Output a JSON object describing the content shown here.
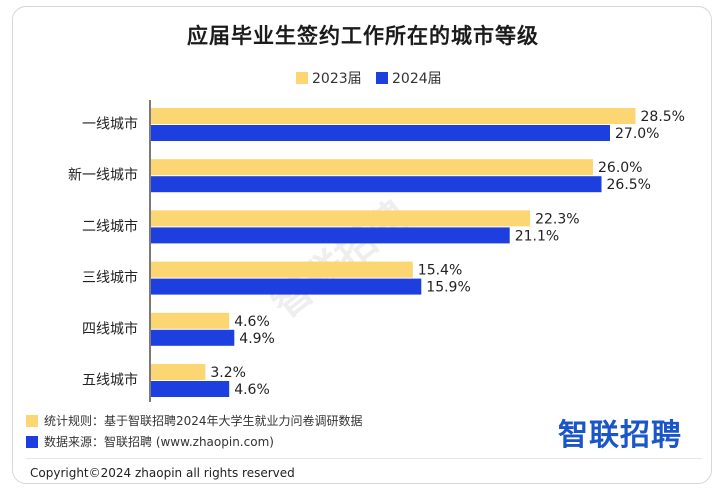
{
  "title": "应届毕业生签约工作所在的城市等级",
  "colors": {
    "y2023": "#fbd672",
    "y2024": "#1e3fe0"
  },
  "chart_data": {
    "type": "bar",
    "orientation": "horizontal",
    "categories": [
      "一线城市",
      "新一线城市",
      "二线城市",
      "三线城市",
      "四线城市",
      "五线城市"
    ],
    "series": [
      {
        "name": "2023届",
        "values": [
          28.5,
          26.0,
          22.3,
          15.4,
          4.6,
          3.2
        ],
        "labels": [
          "28.5%",
          "26.0%",
          "22.3%",
          "15.4%",
          "4.6%",
          "3.2%"
        ]
      },
      {
        "name": "2024届",
        "values": [
          27.0,
          26.5,
          21.1,
          15.9,
          4.9,
          4.6
        ],
        "labels": [
          "27.0%",
          "26.5%",
          "21.1%",
          "15.9%",
          "4.9%",
          "4.6%"
        ]
      }
    ],
    "xlim": [
      0,
      30
    ],
    "unit": "%",
    "grid": false,
    "legend_position": "top-center"
  },
  "notes": [
    {
      "label": "统计规则：基于智联招聘2024年大学生就业力问卷调研数据"
    },
    {
      "label": "数据来源：智联招聘 (www.zhaopin.com)"
    }
  ],
  "watermark": "智联招聘",
  "logo": "智联招聘",
  "copyright": "Copyright©2024 zhaopin all rights reserved"
}
